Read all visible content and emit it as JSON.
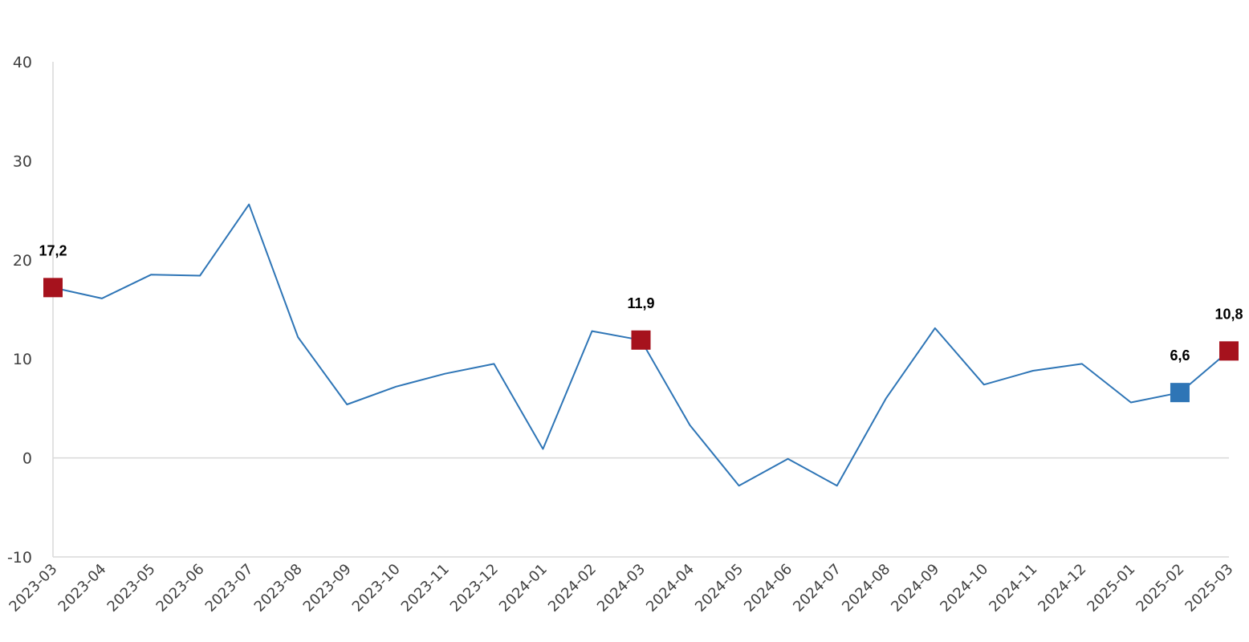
{
  "colors": {
    "line": "#2E75B6",
    "marker_red": "#A6121D",
    "marker_blue": "#2E75B6",
    "axis": "#d9d9d9",
    "text": "#404040"
  },
  "chart_data": {
    "type": "line",
    "title": "",
    "xlabel": "",
    "ylabel": "",
    "ylim": [
      -10,
      40
    ],
    "yticks": [
      -10,
      0,
      10,
      20,
      30,
      40
    ],
    "grid": false,
    "legend": "none",
    "categories": [
      "2023-03",
      "2023-04",
      "2023-05",
      "2023-06",
      "2023-07",
      "2023-08",
      "2023-09",
      "2023-10",
      "2023-11",
      "2023-12",
      "2024-01",
      "2024-02",
      "2024-03",
      "2024-04",
      "2024-05",
      "2024-06",
      "2024-07",
      "2024-08",
      "2024-09",
      "2024-10",
      "2024-11",
      "2024-12",
      "2025-01",
      "2025-02",
      "2025-03"
    ],
    "series": [
      {
        "values": [
          17.2,
          16.1,
          18.5,
          18.4,
          25.6,
          12.2,
          5.4,
          7.2,
          8.5,
          9.5,
          0.9,
          12.8,
          11.9,
          3.3,
          -2.8,
          -0.1,
          -2.8,
          6.0,
          13.1,
          7.4,
          8.8,
          9.5,
          5.6,
          6.6,
          10.8
        ]
      }
    ],
    "highlighted_points": [
      {
        "category": "2023-03",
        "value": 17.2,
        "label": "17,2",
        "color": "red"
      },
      {
        "category": "2024-03",
        "value": 11.9,
        "label": "11,9",
        "color": "red"
      },
      {
        "category": "2025-02",
        "value": 6.6,
        "label": "6,6",
        "color": "blue"
      },
      {
        "category": "2025-03",
        "value": 10.8,
        "label": "10,8",
        "color": "red"
      }
    ]
  }
}
